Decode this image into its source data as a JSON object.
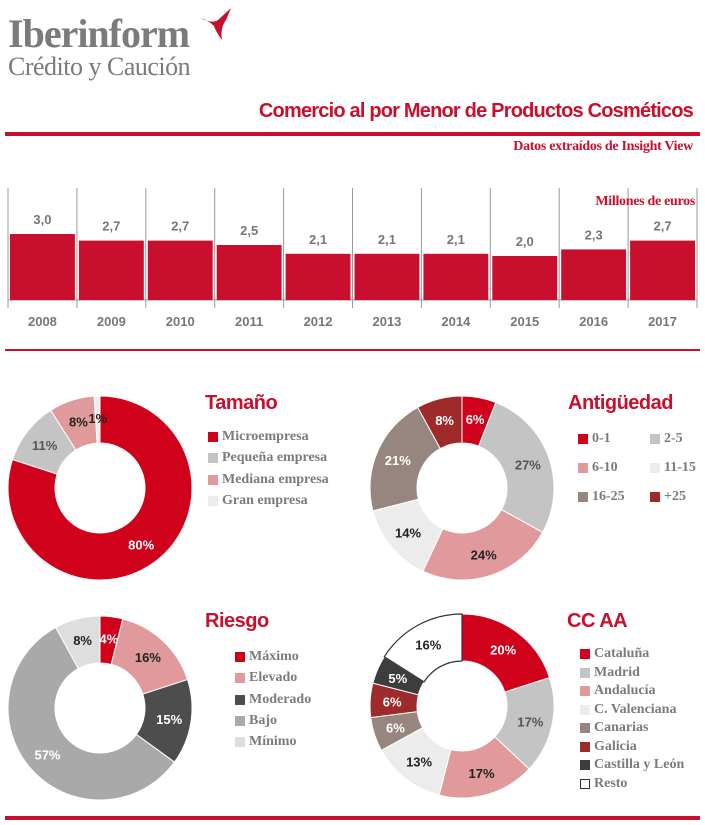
{
  "logo": {
    "name": "Iberinform",
    "tagline": "Crédito y Caución"
  },
  "header": {
    "title": "Comercio al por Menor de Productos Cosméticos",
    "source": "Datos extraídos de Insight View"
  },
  "colors": {
    "accent": "#c8102e",
    "text_gray": "#7b7b7b"
  },
  "chart_data": [
    {
      "type": "bar",
      "units_label": "Millones de euros",
      "categories": [
        "2008",
        "2009",
        "2010",
        "2011",
        "2012",
        "2013",
        "2014",
        "2015",
        "2016",
        "2017"
      ],
      "values": [
        3.0,
        2.7,
        2.7,
        2.5,
        2.1,
        2.1,
        2.1,
        2.0,
        2.3,
        2.7
      ],
      "value_labels": [
        "3,0",
        "2,7",
        "2,7",
        "2,5",
        "2,1",
        "2,1",
        "2,1",
        "2,0",
        "2,3",
        "2,7"
      ],
      "color": "#c8102e",
      "grid": "vertical separators"
    },
    {
      "type": "pie",
      "variant": "donut",
      "title": "Tamaño",
      "labels": [
        "Microempresa",
        "Pequeña empresa",
        "Mediana empresa",
        "Gran empresa"
      ],
      "values": [
        80,
        11,
        8,
        1
      ],
      "colors": [
        "#d0021b",
        "#c4c4c4",
        "#e09a9c",
        "#ececec"
      ]
    },
    {
      "type": "pie",
      "variant": "donut",
      "title": "Antigüedad",
      "labels": [
        "0-1",
        "2-5",
        "6-10",
        "11-15",
        "16-25",
        "+25"
      ],
      "values": [
        6,
        27,
        24,
        14,
        21,
        8
      ],
      "colors": [
        "#d0021b",
        "#c4c4c4",
        "#e09a9c",
        "#ececec",
        "#978680",
        "#9e2a2b"
      ]
    },
    {
      "type": "pie",
      "variant": "donut",
      "title": "Riesgo",
      "labels": [
        "Máximo",
        "Elevado",
        "Moderado",
        "Bajo",
        "Mínimo"
      ],
      "values": [
        4,
        16,
        15,
        57,
        8
      ],
      "colors": [
        "#d0021b",
        "#e09a9c",
        "#4d4d4d",
        "#a9a9a9",
        "#dedede"
      ]
    },
    {
      "type": "pie",
      "variant": "donut",
      "title": "CC AA",
      "labels": [
        "Cataluña",
        "Madrid",
        "Andalucía",
        "C. Valenciana",
        "Canarias",
        "Galicia",
        "Castilla y León",
        "Resto"
      ],
      "values": [
        20,
        17,
        17,
        13,
        6,
        6,
        5,
        16
      ],
      "colors": [
        "#d0021b",
        "#c4c4c4",
        "#e09a9c",
        "#ececec",
        "#978680",
        "#9e2a2b",
        "#3d3d3d",
        "#ffffff"
      ]
    }
  ]
}
